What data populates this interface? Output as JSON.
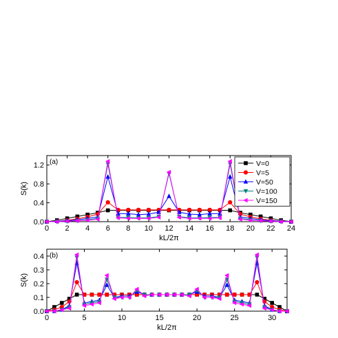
{
  "chart_data": [
    {
      "type": "line",
      "panel_label": "(a)",
      "xlabel": "kL/2π",
      "ylabel": "S(k)",
      "xlim": [
        0,
        24
      ],
      "ylim": [
        0,
        1.4
      ],
      "xticks": [
        "0",
        "2",
        "4",
        "6",
        "8",
        "10",
        "12",
        "14",
        "16",
        "18",
        "20",
        "22",
        "24"
      ],
      "yticks": [
        "0.0",
        "0.4",
        "0.8",
        "1.2"
      ],
      "legend_position": "top-right",
      "x": [
        0,
        1,
        2,
        3,
        4,
        5,
        6,
        7,
        8,
        9,
        10,
        11,
        12,
        13,
        14,
        15,
        16,
        17,
        18,
        19,
        20,
        21,
        22,
        23,
        24
      ],
      "series": [
        {
          "name": "V=0",
          "color": "#000000",
          "marker": "square",
          "values": [
            0.0,
            0.03,
            0.07,
            0.11,
            0.15,
            0.19,
            0.24,
            0.24,
            0.24,
            0.24,
            0.24,
            0.24,
            0.24,
            0.24,
            0.24,
            0.24,
            0.24,
            0.24,
            0.24,
            0.19,
            0.15,
            0.11,
            0.07,
            0.03,
            0.0
          ]
        },
        {
          "name": "V=5",
          "color": "#ff0000",
          "marker": "circle",
          "values": [
            0.0,
            0.01,
            0.03,
            0.06,
            0.1,
            0.16,
            0.41,
            0.25,
            0.25,
            0.25,
            0.25,
            0.25,
            0.25,
            0.25,
            0.25,
            0.25,
            0.25,
            0.25,
            0.41,
            0.16,
            0.1,
            0.06,
            0.03,
            0.01,
            0.0
          ]
        },
        {
          "name": "V=50",
          "color": "#0000ff",
          "marker": "triangle-up",
          "values": [
            0.0,
            0.01,
            0.02,
            0.04,
            0.07,
            0.1,
            0.95,
            0.17,
            0.17,
            0.15,
            0.16,
            0.2,
            0.54,
            0.2,
            0.16,
            0.15,
            0.17,
            0.17,
            0.95,
            0.1,
            0.07,
            0.04,
            0.02,
            0.01,
            0.0
          ]
        },
        {
          "name": "V=100",
          "color": "#008080",
          "marker": "triangle-down",
          "values": [
            0.0,
            0.0,
            0.01,
            0.02,
            0.04,
            0.07,
            1.22,
            0.09,
            0.09,
            0.08,
            0.08,
            0.11,
            1.02,
            0.11,
            0.08,
            0.08,
            0.09,
            0.09,
            1.22,
            0.07,
            0.04,
            0.02,
            0.01,
            0.0,
            0.0
          ]
        },
        {
          "name": "V=150",
          "color": "#ff00ff",
          "marker": "triangle-left",
          "values": [
            0.0,
            0.0,
            0.01,
            0.02,
            0.03,
            0.05,
            1.28,
            0.08,
            0.07,
            0.07,
            0.07,
            0.09,
            1.05,
            0.09,
            0.07,
            0.07,
            0.07,
            0.08,
            1.28,
            0.05,
            0.03,
            0.02,
            0.01,
            0.0,
            0.0
          ]
        }
      ]
    },
    {
      "type": "line",
      "panel_label": "(b)",
      "xlabel": "kL/2π",
      "ylabel": "S(k)",
      "xlim": [
        0,
        32
      ],
      "ylim": [
        0,
        0.45
      ],
      "xticks": [
        "0",
        "5",
        "10",
        "15",
        "20",
        "25",
        "30"
      ],
      "yticks": [
        "0.0",
        "0.1",
        "0.2",
        "0.3",
        "0.4"
      ],
      "x": [
        0,
        1,
        2,
        3,
        4,
        5,
        6,
        7,
        8,
        9,
        10,
        11,
        12,
        13,
        14,
        15,
        16,
        17,
        18,
        19,
        20,
        21,
        22,
        23,
        24,
        25,
        26,
        27,
        28,
        29,
        30,
        31,
        32
      ],
      "series": [
        {
          "name": "V=0",
          "color": "#000000",
          "marker": "square",
          "values": [
            0.0,
            0.03,
            0.06,
            0.09,
            0.12,
            0.12,
            0.12,
            0.12,
            0.12,
            0.12,
            0.12,
            0.12,
            0.12,
            0.12,
            0.12,
            0.12,
            0.12,
            0.12,
            0.12,
            0.12,
            0.12,
            0.12,
            0.12,
            0.12,
            0.12,
            0.12,
            0.12,
            0.12,
            0.12,
            0.09,
            0.06,
            0.03,
            0.0
          ]
        },
        {
          "name": "V=5",
          "color": "#ff0000",
          "marker": "circle",
          "values": [
            0.0,
            0.01,
            0.03,
            0.07,
            0.21,
            0.12,
            0.12,
            0.12,
            0.12,
            0.12,
            0.12,
            0.12,
            0.12,
            0.12,
            0.12,
            0.12,
            0.12,
            0.12,
            0.12,
            0.12,
            0.12,
            0.12,
            0.12,
            0.12,
            0.12,
            0.12,
            0.12,
            0.12,
            0.21,
            0.07,
            0.03,
            0.01,
            0.0
          ]
        },
        {
          "name": "V=50",
          "color": "#0000ff",
          "marker": "triangle-up",
          "values": [
            0.0,
            0.0,
            0.01,
            0.04,
            0.35,
            0.06,
            0.07,
            0.08,
            0.19,
            0.1,
            0.11,
            0.11,
            0.14,
            0.12,
            0.12,
            0.12,
            0.12,
            0.12,
            0.12,
            0.12,
            0.14,
            0.11,
            0.11,
            0.1,
            0.19,
            0.08,
            0.07,
            0.06,
            0.35,
            0.04,
            0.01,
            0.0,
            0.0
          ]
        },
        {
          "name": "V=100",
          "color": "#008080",
          "marker": "triangle-down",
          "values": [
            0.0,
            0.0,
            0.01,
            0.03,
            0.39,
            0.05,
            0.06,
            0.07,
            0.23,
            0.1,
            0.1,
            0.1,
            0.15,
            0.12,
            0.12,
            0.12,
            0.12,
            0.12,
            0.12,
            0.12,
            0.15,
            0.1,
            0.1,
            0.1,
            0.23,
            0.07,
            0.06,
            0.05,
            0.39,
            0.03,
            0.01,
            0.0,
            0.0
          ]
        },
        {
          "name": "V=150",
          "color": "#ff00ff",
          "marker": "triangle-left",
          "values": [
            0.0,
            0.0,
            0.01,
            0.02,
            0.41,
            0.04,
            0.05,
            0.06,
            0.26,
            0.09,
            0.1,
            0.1,
            0.16,
            0.11,
            0.12,
            0.12,
            0.12,
            0.12,
            0.12,
            0.11,
            0.16,
            0.1,
            0.1,
            0.09,
            0.26,
            0.06,
            0.05,
            0.04,
            0.41,
            0.02,
            0.01,
            0.0,
            0.0
          ]
        }
      ]
    }
  ]
}
